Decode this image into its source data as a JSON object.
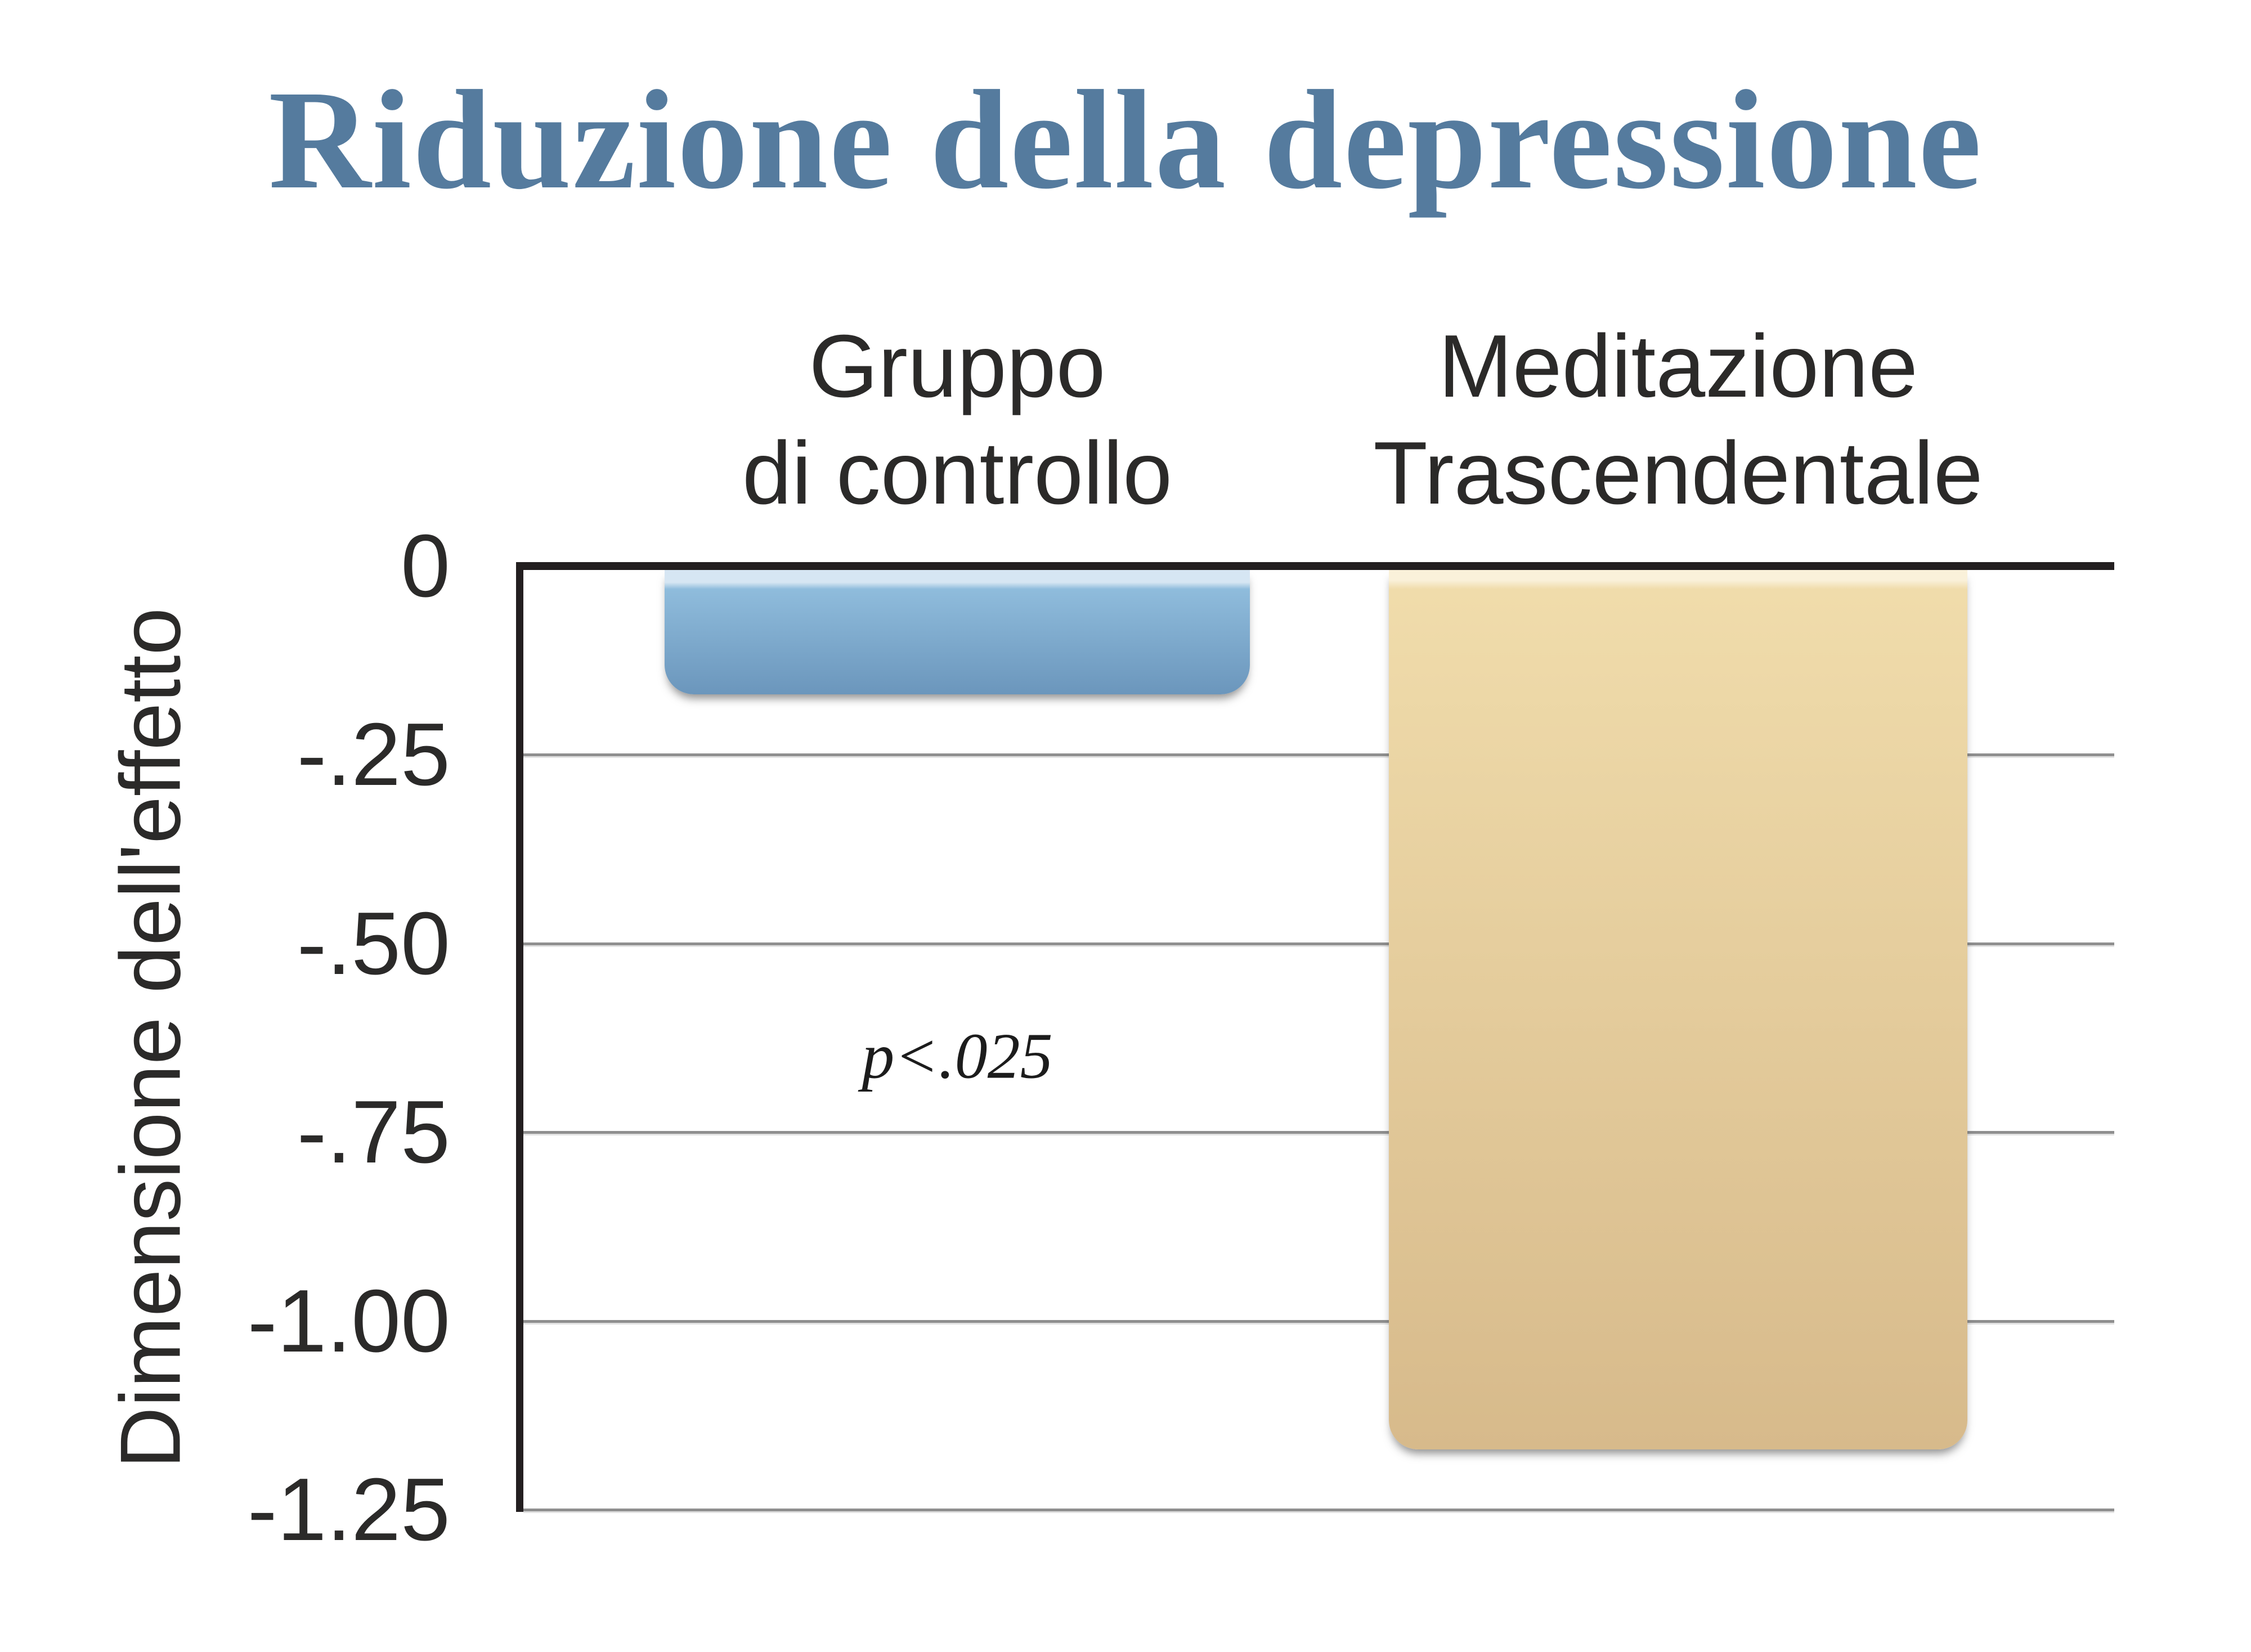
{
  "title": "Riduzione della depressione",
  "title_color": "#557b9e",
  "column_headers": [
    "Gruppo\ndi controllo",
    "Meditazione\nTrascendentale"
  ],
  "y_axis_label": "Dimensione dell'effetto",
  "annotation_text": "p<.025",
  "chart_data": {
    "type": "bar",
    "orientation": "vertical",
    "title": "Riduzione della depressione",
    "categories": [
      "Gruppo di controllo",
      "Meditazione Trascendentale"
    ],
    "values": [
      -0.17,
      -1.17
    ],
    "ylabel": "Dimensione dell'effetto",
    "ylim": [
      -1.25,
      0
    ],
    "yticks": [
      {
        "value": 0,
        "label": "0"
      },
      {
        "value": -0.25,
        "label": "-.25"
      },
      {
        "value": -0.5,
        "label": "-.50"
      },
      {
        "value": -0.75,
        "label": "-.75"
      },
      {
        "value": -1.0,
        "label": "-1.00"
      },
      {
        "value": -1.25,
        "label": "-1.25"
      }
    ],
    "grid": true,
    "legend_position": "none",
    "bar_colors": {
      "control_top_highlight": "#d6e6f3",
      "control_gradient": [
        "#8fbcdc",
        "#6b96bc"
      ],
      "tm_top_highlight": "#faf1da",
      "tm_gradient": [
        "#f0dcab",
        "#d7ba8b"
      ]
    },
    "axis_line_color": "#231f20",
    "gridline_color": "#8f8f8f",
    "annotation": {
      "text": "p<.025",
      "attached_to": "Gruppo di controllo",
      "y_value": -0.65
    }
  }
}
